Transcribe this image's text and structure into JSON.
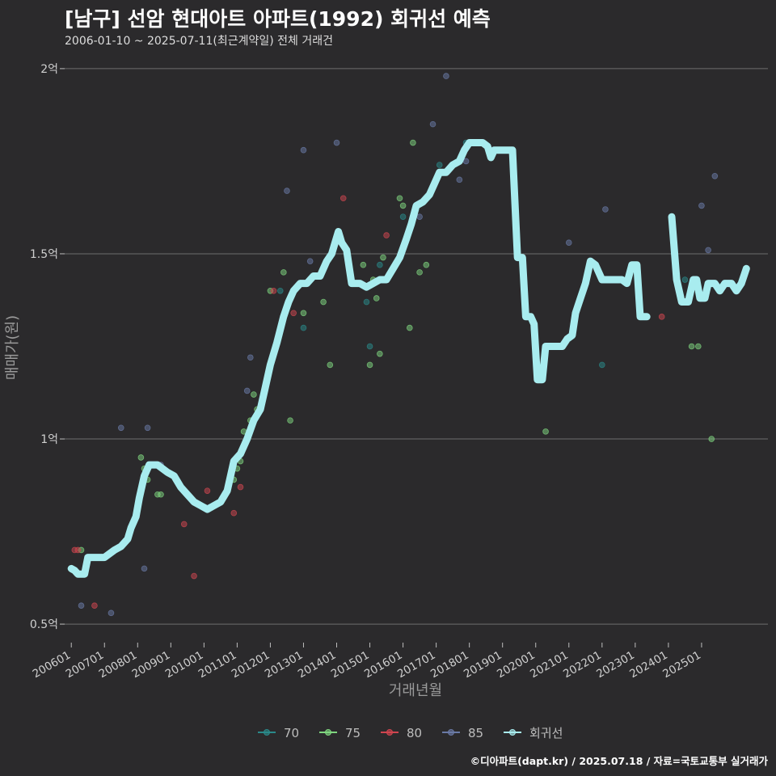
{
  "title": "[남구] 선암 현대아트 아파트(1992) 회귀선 예측",
  "subtitle": "2006-01-10 ~ 2025-07-11(최근계약일) 전체 거래건",
  "credit": "©디아파트(dapt.kr) / 2025.07.18 / 자료=국토교통부 실거래가",
  "chart_data": {
    "type": "scatter",
    "xlabel": "거래년월",
    "ylabel": "매매가(원)",
    "xlim": [
      2005.8,
      2027.0
    ],
    "ylim": [
      0.45,
      2.05
    ],
    "y_ticks": [
      {
        "value": 0.5,
        "label": "0.5억"
      },
      {
        "value": 1.0,
        "label": "1억"
      },
      {
        "value": 1.5,
        "label": "1.5억"
      },
      {
        "value": 2.0,
        "label": "2억"
      }
    ],
    "x_ticks": [
      {
        "value": 2006.0,
        "label": "200601"
      },
      {
        "value": 2007.0,
        "label": "200701"
      },
      {
        "value": 2008.0,
        "label": "200801"
      },
      {
        "value": 2009.0,
        "label": "200901"
      },
      {
        "value": 2010.0,
        "label": "201001"
      },
      {
        "value": 2011.0,
        "label": "201101"
      },
      {
        "value": 2012.0,
        "label": "201201"
      },
      {
        "value": 2013.0,
        "label": "201301"
      },
      {
        "value": 2014.0,
        "label": "201401"
      },
      {
        "value": 2015.0,
        "label": "201501"
      },
      {
        "value": 2016.0,
        "label": "201601"
      },
      {
        "value": 2017.0,
        "label": "201701"
      },
      {
        "value": 2018.0,
        "label": "201801"
      },
      {
        "value": 2019.0,
        "label": "201901"
      },
      {
        "value": 2020.0,
        "label": "202001"
      },
      {
        "value": 2021.0,
        "label": "202101"
      },
      {
        "value": 2022.0,
        "label": "202201"
      },
      {
        "value": 2023.0,
        "label": "202301"
      },
      {
        "value": 2024.0,
        "label": "202401"
      },
      {
        "value": 2025.0,
        "label": "202501"
      }
    ],
    "grid": true,
    "legend_position": "bottom",
    "series": [
      {
        "name": "70",
        "color": "#2a8a8a",
        "points": [
          [
            2012.3,
            1.4
          ],
          [
            2013.0,
            1.3
          ],
          [
            2014.9,
            1.37
          ],
          [
            2015.0,
            1.25
          ],
          [
            2015.3,
            1.47
          ],
          [
            2016.0,
            1.6
          ],
          [
            2017.1,
            1.74
          ],
          [
            2017.9,
            1.8
          ],
          [
            2022.0,
            1.2
          ],
          [
            2024.5,
            1.43
          ]
        ]
      },
      {
        "name": "75",
        "color": "#7fd67f",
        "points": [
          [
            2006.3,
            0.7
          ],
          [
            2008.1,
            0.95
          ],
          [
            2008.2,
            0.92
          ],
          [
            2008.3,
            0.89
          ],
          [
            2008.6,
            0.85
          ],
          [
            2008.7,
            0.85
          ],
          [
            2010.9,
            0.89
          ],
          [
            2011.0,
            0.92
          ],
          [
            2011.1,
            0.94
          ],
          [
            2011.2,
            1.02
          ],
          [
            2011.4,
            1.05
          ],
          [
            2011.5,
            1.12
          ],
          [
            2011.6,
            1.08
          ],
          [
            2012.0,
            1.4
          ],
          [
            2012.4,
            1.45
          ],
          [
            2012.6,
            1.05
          ],
          [
            2013.0,
            1.34
          ],
          [
            2013.6,
            1.37
          ],
          [
            2013.8,
            1.2
          ],
          [
            2014.5,
            1.42
          ],
          [
            2014.8,
            1.47
          ],
          [
            2015.0,
            1.2
          ],
          [
            2015.1,
            1.43
          ],
          [
            2015.2,
            1.38
          ],
          [
            2015.3,
            1.23
          ],
          [
            2015.4,
            1.49
          ],
          [
            2015.9,
            1.65
          ],
          [
            2016.0,
            1.63
          ],
          [
            2016.2,
            1.3
          ],
          [
            2016.3,
            1.8
          ],
          [
            2016.5,
            1.45
          ],
          [
            2016.7,
            1.47
          ],
          [
            2020.3,
            1.02
          ],
          [
            2024.7,
            1.25
          ],
          [
            2024.9,
            1.25
          ],
          [
            2025.3,
            1.0
          ]
        ]
      },
      {
        "name": "80",
        "color": "#d0454f",
        "points": [
          [
            2006.1,
            0.7
          ],
          [
            2006.2,
            0.7
          ],
          [
            2006.7,
            0.55
          ],
          [
            2009.4,
            0.77
          ],
          [
            2009.7,
            0.63
          ],
          [
            2010.1,
            0.86
          ],
          [
            2010.9,
            0.8
          ],
          [
            2011.1,
            0.87
          ],
          [
            2012.1,
            1.4
          ],
          [
            2012.7,
            1.34
          ],
          [
            2014.2,
            1.65
          ],
          [
            2015.5,
            1.55
          ],
          [
            2023.8,
            1.33
          ]
        ]
      },
      {
        "name": "85",
        "color": "#6a7aa6",
        "points": [
          [
            2006.3,
            0.55
          ],
          [
            2007.2,
            0.53
          ],
          [
            2007.5,
            1.03
          ],
          [
            2008.2,
            0.65
          ],
          [
            2008.3,
            1.03
          ],
          [
            2008.7,
            0.93
          ],
          [
            2011.3,
            1.13
          ],
          [
            2011.4,
            1.22
          ],
          [
            2012.5,
            1.67
          ],
          [
            2013.0,
            1.78
          ],
          [
            2013.2,
            1.48
          ],
          [
            2014.0,
            1.8
          ],
          [
            2016.5,
            1.6
          ],
          [
            2016.9,
            1.85
          ],
          [
            2017.3,
            1.98
          ],
          [
            2017.7,
            1.7
          ],
          [
            2017.9,
            1.75
          ],
          [
            2021.0,
            1.53
          ],
          [
            2022.1,
            1.62
          ],
          [
            2025.0,
            1.63
          ],
          [
            2025.2,
            1.51
          ],
          [
            2025.4,
            1.71
          ]
        ]
      }
    ],
    "regression": {
      "name": "회귀선",
      "color": "#a8ecef",
      "segments": [
        [
          [
            2006.0,
            0.65
          ],
          [
            2006.1,
            0.645
          ],
          [
            2006.2,
            0.635
          ],
          [
            2006.4,
            0.635
          ],
          [
            2006.5,
            0.68
          ],
          [
            2007.0,
            0.68
          ],
          [
            2007.3,
            0.7
          ],
          [
            2007.5,
            0.71
          ],
          [
            2007.7,
            0.73
          ],
          [
            2007.8,
            0.76
          ],
          [
            2007.95,
            0.79
          ],
          [
            2008.05,
            0.84
          ],
          [
            2008.2,
            0.9
          ],
          [
            2008.35,
            0.93
          ],
          [
            2008.6,
            0.93
          ],
          [
            2008.9,
            0.91
          ],
          [
            2009.1,
            0.9
          ],
          [
            2009.3,
            0.87
          ],
          [
            2009.5,
            0.85
          ],
          [
            2009.7,
            0.83
          ],
          [
            2009.9,
            0.82
          ],
          [
            2010.1,
            0.81
          ],
          [
            2010.3,
            0.82
          ],
          [
            2010.5,
            0.83
          ],
          [
            2010.7,
            0.86
          ],
          [
            2010.9,
            0.94
          ],
          [
            2011.1,
            0.96
          ],
          [
            2011.3,
            1.0
          ],
          [
            2011.5,
            1.05
          ],
          [
            2011.7,
            1.08
          ],
          [
            2011.85,
            1.14
          ],
          [
            2012.0,
            1.2
          ],
          [
            2012.2,
            1.26
          ],
          [
            2012.4,
            1.33
          ],
          [
            2012.55,
            1.37
          ],
          [
            2012.7,
            1.4
          ],
          [
            2012.9,
            1.42
          ],
          [
            2013.1,
            1.42
          ],
          [
            2013.3,
            1.44
          ],
          [
            2013.5,
            1.44
          ],
          [
            2013.7,
            1.48
          ],
          [
            2013.85,
            1.5
          ],
          [
            2013.95,
            1.53
          ],
          [
            2014.05,
            1.56
          ],
          [
            2014.15,
            1.53
          ],
          [
            2014.3,
            1.51
          ],
          [
            2014.45,
            1.42
          ],
          [
            2014.7,
            1.42
          ],
          [
            2014.9,
            1.41
          ],
          [
            2015.1,
            1.42
          ],
          [
            2015.3,
            1.43
          ],
          [
            2015.5,
            1.43
          ],
          [
            2015.7,
            1.46
          ],
          [
            2015.9,
            1.49
          ],
          [
            2016.1,
            1.54
          ],
          [
            2016.25,
            1.58
          ],
          [
            2016.4,
            1.63
          ],
          [
            2016.6,
            1.64
          ],
          [
            2016.8,
            1.66
          ],
          [
            2016.95,
            1.69
          ],
          [
            2017.1,
            1.72
          ],
          [
            2017.3,
            1.72
          ],
          [
            2017.5,
            1.74
          ],
          [
            2017.7,
            1.75
          ],
          [
            2017.85,
            1.78
          ],
          [
            2018.0,
            1.8
          ],
          [
            2018.2,
            1.8
          ],
          [
            2018.4,
            1.8
          ],
          [
            2018.55,
            1.79
          ],
          [
            2018.65,
            1.76
          ],
          [
            2018.75,
            1.78
          ],
          [
            2019.1,
            1.78
          ],
          [
            2019.3,
            1.78
          ],
          [
            2019.45,
            1.49
          ],
          [
            2019.6,
            1.49
          ],
          [
            2019.7,
            1.33
          ],
          [
            2019.85,
            1.33
          ],
          [
            2019.95,
            1.31
          ],
          [
            2020.05,
            1.16
          ],
          [
            2020.2,
            1.16
          ],
          [
            2020.3,
            1.25
          ],
          [
            2020.6,
            1.25
          ],
          [
            2020.8,
            1.25
          ],
          [
            2020.95,
            1.27
          ],
          [
            2021.1,
            1.28
          ],
          [
            2021.2,
            1.34
          ],
          [
            2021.35,
            1.38
          ],
          [
            2021.5,
            1.42
          ],
          [
            2021.65,
            1.48
          ],
          [
            2021.8,
            1.47
          ],
          [
            2022.0,
            1.43
          ],
          [
            2022.6,
            1.43
          ],
          [
            2022.75,
            1.42
          ],
          [
            2022.9,
            1.47
          ],
          [
            2023.05,
            1.47
          ],
          [
            2023.15,
            1.33
          ],
          [
            2023.35,
            1.33
          ]
        ],
        [
          [
            2024.1,
            1.6
          ],
          [
            2024.25,
            1.43
          ],
          [
            2024.4,
            1.37
          ],
          [
            2024.6,
            1.37
          ],
          [
            2024.75,
            1.43
          ],
          [
            2024.85,
            1.43
          ],
          [
            2024.95,
            1.38
          ],
          [
            2025.1,
            1.38
          ],
          [
            2025.2,
            1.42
          ],
          [
            2025.4,
            1.42
          ],
          [
            2025.55,
            1.4
          ],
          [
            2025.7,
            1.42
          ],
          [
            2025.9,
            1.42
          ],
          [
            2026.05,
            1.4
          ],
          [
            2026.2,
            1.42
          ],
          [
            2026.35,
            1.46
          ]
        ]
      ]
    }
  }
}
